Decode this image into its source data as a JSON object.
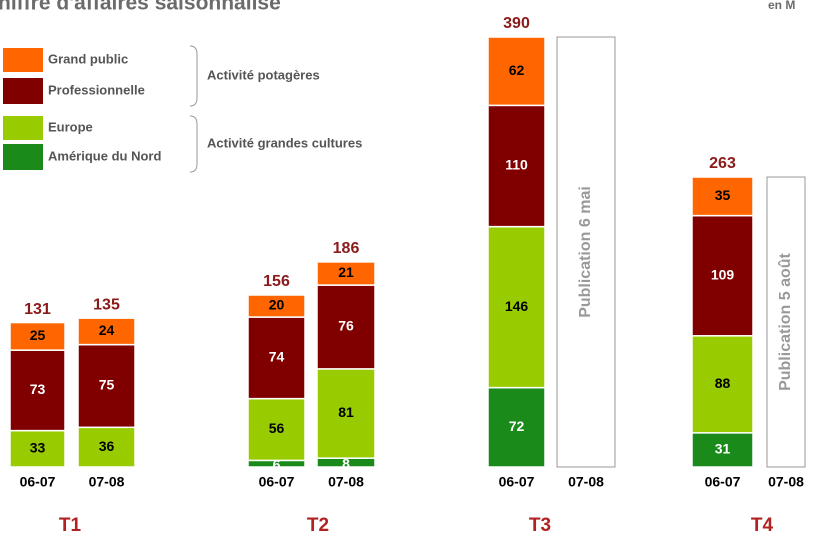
{
  "chart_data": {
    "type": "stacked_bar",
    "title": "hiffre d'affaires saisonnalisé",
    "unit": "en M",
    "groups": [
      "T1",
      "T2",
      "T3",
      "T4"
    ],
    "categories": [
      "06-07",
      "07-08",
      "06-07",
      "07-08",
      "06-07",
      "07-08",
      "06-07",
      "07-08"
    ],
    "series": [
      {
        "name": "Amérique du Nord",
        "color": "#1a8a1a",
        "values": [
          null,
          null,
          6,
          8,
          72,
          null,
          31,
          null
        ]
      },
      {
        "name": "Europe",
        "color": "#99cc00",
        "values": [
          33,
          36,
          56,
          81,
          146,
          null,
          88,
          null
        ]
      },
      {
        "name": "Professionnelle",
        "color": "#800000",
        "values": [
          73,
          75,
          74,
          76,
          110,
          null,
          109,
          null
        ]
      },
      {
        "name": "Grand public",
        "color": "#ff6600",
        "values": [
          25,
          24,
          20,
          21,
          62,
          null,
          35,
          null
        ]
      }
    ],
    "totals": [
      131,
      135,
      156,
      186,
      390,
      null,
      263,
      null
    ],
    "placeholder_labels": [
      null,
      null,
      null,
      null,
      null,
      "Publication 6 mai",
      null,
      "Publication 5 août"
    ],
    "legend_groups": [
      "Activité potagères",
      "Activité grandes cultures"
    ],
    "ylim": [
      0,
      390
    ]
  }
}
